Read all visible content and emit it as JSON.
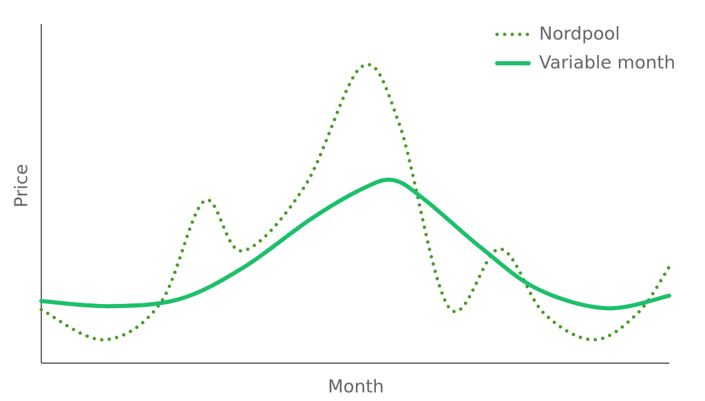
{
  "chart_data": {
    "type": "line",
    "x_label": "Month",
    "y_label": "Price",
    "xlim": [
      0,
      100
    ],
    "ylim": [
      0,
      100
    ],
    "legend": "upper right",
    "series": [
      {
        "name": "Nordpool",
        "color": "#4c9a2a",
        "style": "dotted",
        "x": [
          0,
          10,
          19,
          26,
          32,
          42,
          51,
          57,
          65,
          73,
          80,
          88,
          95,
          100
        ],
        "values": [
          15.8,
          6.9,
          17.8,
          47.9,
          33.1,
          52.3,
          87.4,
          70.6,
          16.2,
          33.7,
          14.8,
          6.9,
          14.8,
          28.4
        ]
      },
      {
        "name": "Variable month",
        "color": "#1dbf6b",
        "style": "solid",
        "x": [
          0,
          11,
          22,
          32,
          43,
          51,
          56,
          61,
          70,
          79,
          90,
          100
        ],
        "values": [
          18.3,
          16.8,
          18.9,
          28.0,
          42.6,
          51.3,
          54.0,
          48.3,
          34.1,
          21.9,
          16.2,
          19.9
        ]
      }
    ]
  }
}
